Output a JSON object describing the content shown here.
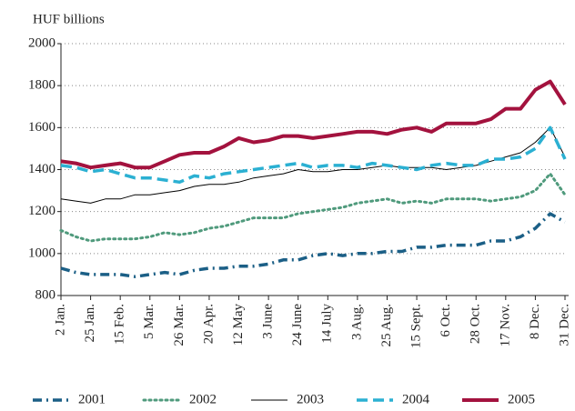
{
  "chart_data": {
    "type": "line",
    "y_label": "HUF billions",
    "categories": [
      "2 Jan.",
      null,
      "25 Jan.",
      null,
      "15 Feb.",
      null,
      "5 Mar.",
      null,
      "26 Mar.",
      null,
      "20 Apr.",
      null,
      "12 May",
      null,
      "3 June",
      null,
      "24 June",
      null,
      "14 July",
      null,
      "3 Aug.",
      null,
      "25 Aug.",
      null,
      "15 Sept.",
      null,
      "6 Oct.",
      null,
      "28 Oct.",
      null,
      "17 Nov.",
      null,
      "8 Dec.",
      null,
      "31 Dec."
    ],
    "ylim": [
      800,
      2000
    ],
    "yticks": [
      800,
      1000,
      1200,
      1400,
      1600,
      1800,
      2000
    ],
    "grid": true,
    "legend": "bottom",
    "series": [
      {
        "name": "2001",
        "color": "#1b5f86",
        "style": "dash-dot",
        "values": [
          930,
          910,
          900,
          900,
          900,
          890,
          900,
          910,
          900,
          920,
          930,
          930,
          940,
          940,
          950,
          970,
          970,
          990,
          1000,
          990,
          1000,
          1000,
          1010,
          1010,
          1030,
          1030,
          1040,
          1040,
          1040,
          1060,
          1060,
          1080,
          1120,
          1190,
          1150
        ]
      },
      {
        "name": "2002",
        "color": "#4f9a7c",
        "style": "dotted",
        "values": [
          1110,
          1080,
          1060,
          1070,
          1070,
          1070,
          1080,
          1100,
          1090,
          1100,
          1120,
          1130,
          1150,
          1170,
          1170,
          1170,
          1190,
          1200,
          1210,
          1220,
          1240,
          1250,
          1260,
          1240,
          1250,
          1240,
          1260,
          1260,
          1260,
          1250,
          1260,
          1270,
          1300,
          1380,
          1280
        ]
      },
      {
        "name": "2003",
        "color": "#000000",
        "style": "thin",
        "values": [
          1260,
          1250,
          1240,
          1260,
          1260,
          1280,
          1280,
          1290,
          1300,
          1320,
          1330,
          1330,
          1340,
          1360,
          1370,
          1380,
          1400,
          1390,
          1390,
          1400,
          1400,
          1410,
          1420,
          1410,
          1410,
          1410,
          1400,
          1410,
          1420,
          1440,
          1460,
          1480,
          1530,
          1600,
          1460
        ]
      },
      {
        "name": "2004",
        "color": "#2bb0d2",
        "style": "dashed",
        "values": [
          1420,
          1410,
          1390,
          1400,
          1380,
          1360,
          1360,
          1350,
          1340,
          1370,
          1360,
          1380,
          1390,
          1400,
          1410,
          1420,
          1430,
          1410,
          1420,
          1420,
          1410,
          1430,
          1420,
          1410,
          1400,
          1420,
          1430,
          1420,
          1420,
          1450,
          1450,
          1460,
          1500,
          1600,
          1450
        ]
      },
      {
        "name": "2005",
        "color": "#a3123e",
        "style": "solid",
        "values": [
          1440,
          1430,
          1410,
          1420,
          1430,
          1410,
          1410,
          1440,
          1470,
          1480,
          1480,
          1510,
          1550,
          1530,
          1540,
          1560,
          1560,
          1550,
          1560,
          1570,
          1580,
          1580,
          1570,
          1590,
          1600,
          1580,
          1620,
          1620,
          1620,
          1640,
          1690,
          1690,
          1780,
          1820,
          1710
        ]
      }
    ]
  }
}
